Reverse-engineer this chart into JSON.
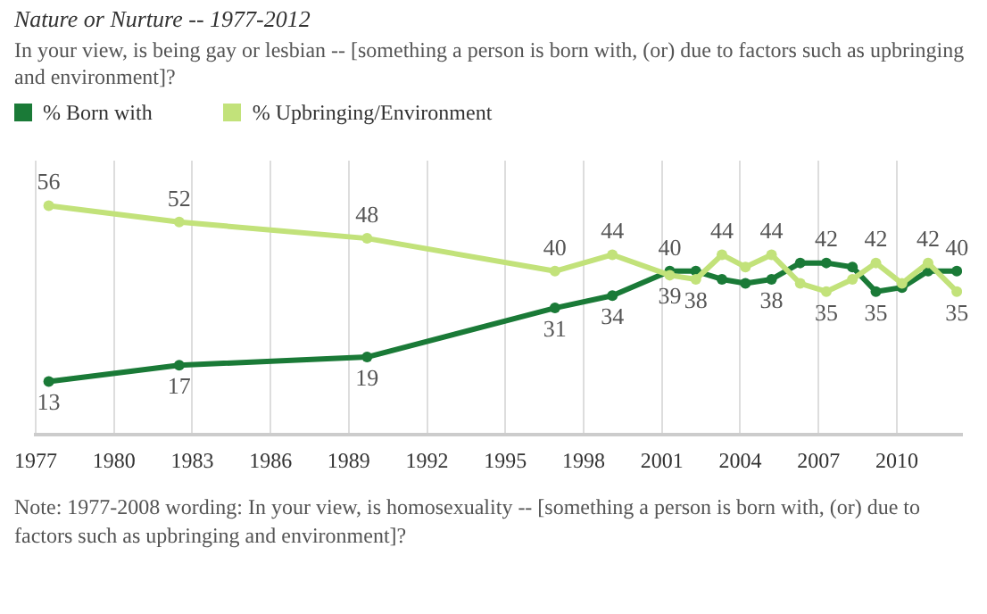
{
  "chart_data": {
    "type": "line",
    "title": "Nature or Nurture -- 1977-2012",
    "subtitle": "In your view, is being gay or lesbian -- [something a person is born with, (or) due to factors such as upbringing and environment]?",
    "x": [
      1977.5,
      1982.5,
      1989.7,
      1996.9,
      1999.1,
      2001.3,
      2002.3,
      2003.3,
      2004.2,
      2005.2,
      2006.3,
      2007.3,
      2008.3,
      2009.2,
      2010.2,
      2011.2,
      2012.3
    ],
    "series": [
      {
        "name": "% Born with",
        "color": "#1a7a37",
        "values": [
          13,
          17,
          19,
          31,
          34,
          40,
          40,
          38,
          37,
          38,
          42,
          42,
          41,
          35,
          36,
          40,
          40
        ],
        "value_labels": [
          "13",
          "17",
          "19",
          "31",
          "34",
          "40",
          null,
          null,
          null,
          "38",
          null,
          "42",
          null,
          "35",
          null,
          null,
          "40"
        ]
      },
      {
        "name": "% Upbringing/Environment",
        "color": "#c2e27a",
        "values": [
          56,
          52,
          48,
          40,
          44,
          39,
          38,
          44,
          41,
          44,
          37,
          35,
          38,
          42,
          37,
          42,
          35
        ],
        "value_labels": [
          "56",
          "52",
          "48",
          "40",
          "44",
          "39",
          "38",
          "44",
          null,
          "44",
          null,
          "35",
          null,
          "42",
          null,
          "42",
          "35"
        ]
      }
    ],
    "xlim": [
      1977,
      2012.5
    ],
    "xticks": [
      1977,
      1980,
      1983,
      1986,
      1989,
      1992,
      1995,
      1998,
      2001,
      2004,
      2007,
      2010
    ],
    "ylim": [
      0,
      67
    ],
    "grid": "x",
    "tick_labels": "x",
    "legend": "top left",
    "marker": "circle",
    "line_style": "solid",
    "annotations": [
      "Note: 1977-2008 wording: In your view, is homosexuality -- [something a person is born with, (or) due to factors such as upbringing and environment]?"
    ]
  }
}
